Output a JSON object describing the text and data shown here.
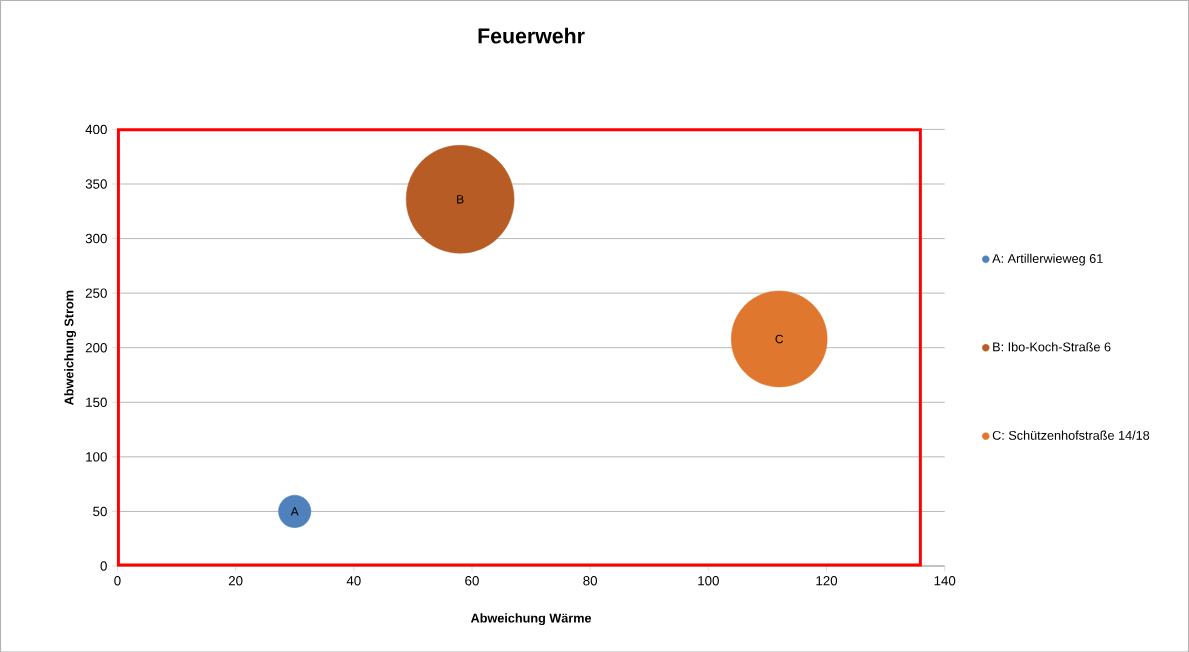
{
  "chart_data": {
    "type": "bubble",
    "title": "Feuerwehr",
    "xlabel": "Abweichung Wärme",
    "ylabel": "Abweichung Strom",
    "series": [
      {
        "name": "A: Artillerwieweg 61",
        "color": "#4f81bd",
        "x": [
          30
        ],
        "values": [
          50
        ],
        "sizes": [
          0.09
        ]
      },
      {
        "name": "B: Ibo-Koch-Straße 6",
        "color": "#b65c24",
        "x": [
          58
        ],
        "values": [
          336
        ],
        "sizes": [
          1
        ]
      },
      {
        "name": "C: Schützenhofstraße 14/18",
        "color": "#e0772f",
        "x": [
          112
        ],
        "values": [
          208
        ],
        "sizes": [
          0.79
        ]
      }
    ],
    "annotations": [
      {
        "text": "A",
        "x": 30,
        "y": 50
      },
      {
        "text": "B",
        "x": 58,
        "y": 336
      },
      {
        "text": "C",
        "x": 112,
        "y": 208
      }
    ],
    "xlim": [
      0,
      140
    ],
    "ylim": [
      0,
      400
    ],
    "xticks": [
      0,
      20,
      40,
      60,
      80,
      100,
      120,
      140
    ],
    "yticks": [
      0,
      50,
      100,
      150,
      200,
      250,
      300,
      350,
      400
    ],
    "grid": "y",
    "legend": "right"
  }
}
